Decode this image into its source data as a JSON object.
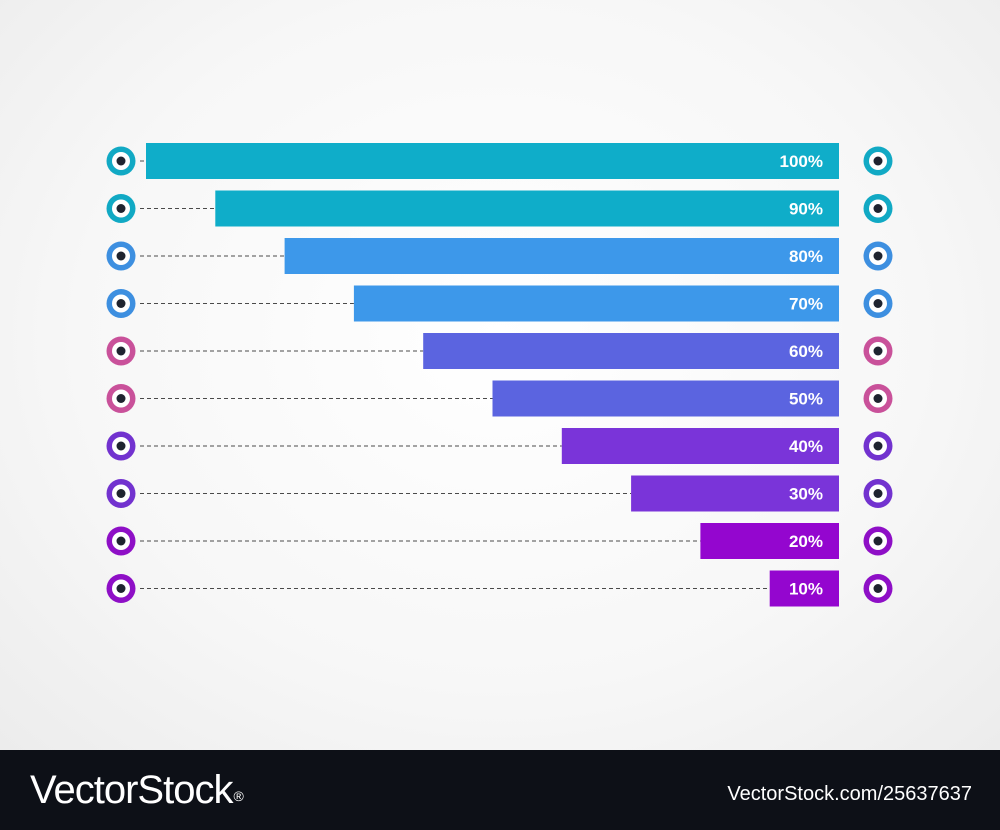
{
  "chart_data": {
    "type": "bar",
    "orientation": "horizontal",
    "categories": [
      "100%",
      "90%",
      "80%",
      "70%",
      "60%",
      "50%",
      "40%",
      "30%",
      "20%",
      "10%"
    ],
    "values": [
      100,
      90,
      80,
      70,
      60,
      50,
      40,
      30,
      20,
      10
    ],
    "xlim": [
      0,
      100
    ],
    "bars_aligned": "right",
    "grid": false,
    "colors": [
      "#0fadc9",
      "#0fadc9",
      "#3d98ea",
      "#3d98ea",
      "#5b64e0",
      "#5b64e0",
      "#7a34d9",
      "#7a34d9",
      "#9406cf",
      "#9406cf"
    ],
    "marker_colors": [
      "#11a9c4",
      "#11a9c4",
      "#3d8fe0",
      "#3d8fe0",
      "#c9519a",
      "#c9519a",
      "#7232cf",
      "#7232cf",
      "#8e0fc6",
      "#8e0fc6"
    ],
    "marker_icon": "target-circle-icon",
    "connector_style": "dashed"
  },
  "footer": {
    "brand": "VectorStock",
    "registered_mark": "®",
    "image_id": "VectorStock.com/25637637"
  }
}
